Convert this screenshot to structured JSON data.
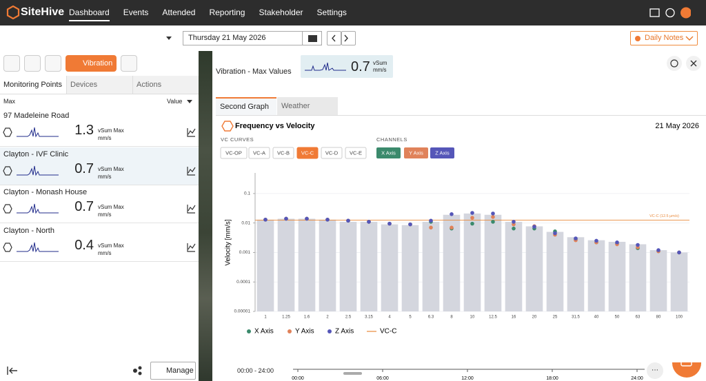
{
  "nav": {
    "brand": "SiteHive",
    "items": [
      "Dashboard",
      "Events",
      "Attended",
      "Reporting",
      "Stakeholder",
      "Settings"
    ]
  },
  "toolbar": {
    "date": "Thursday 21 May 2026",
    "notes": "Daily Notes"
  },
  "sidebar": {
    "mode": "Vibration",
    "tabs": [
      "Monitoring Points",
      "Devices",
      "Actions"
    ],
    "columns": [
      "Max",
      "Value"
    ],
    "points": [
      {
        "name": "97 Madeleine Road",
        "value": 1.3,
        "metric": "vSum Max",
        "unit": "mm/s"
      },
      {
        "name": "Clayton - IVF Clinic",
        "value": 0.7,
        "metric": "vSum Max",
        "unit": "mm/s"
      },
      {
        "name": "Clayton - Monash House",
        "value": 0.7,
        "metric": "vSum Max",
        "unit": "mm/s"
      },
      {
        "name": "Clayton - North",
        "value": 0.4,
        "metric": "vSum Max",
        "unit": "mm/s"
      }
    ],
    "manage": "Manage"
  },
  "panel": {
    "title": "Vibration - Max Values",
    "summary": {
      "value": 0.7,
      "metric": "vSum",
      "unit": "mm/s"
    },
    "tabs": [
      "Second Graph",
      "Weather"
    ],
    "vc_label": "VC CURVES",
    "vc_curves": [
      "VC-OP",
      "VC-A",
      "VC-B",
      "VC-C",
      "VC-D",
      "VC-E"
    ],
    "channels_label": "CHANNELS"
  },
  "timeline": {
    "range": "00:00 - 24:00",
    "ticks": [
      "00:00",
      "06:00",
      "12:00",
      "18:00",
      "24:00"
    ]
  },
  "chart_data": {
    "type": "bar",
    "title": "Frequency vs Velocity",
    "date": "21 May 2026",
    "y_label": "Velocity [mm/s]",
    "yscale": "log",
    "grid": true,
    "categories": [
      "1",
      "1.25",
      "1.6",
      "2",
      "2.5",
      "3.15",
      "4",
      "5",
      "6.3",
      "8",
      "10",
      "12.5",
      "16",
      "20",
      "25",
      "31.5",
      "40",
      "50",
      "63",
      "80",
      "100"
    ],
    "bars": {
      "color": "#d4d6de",
      "values": [
        0.013,
        0.014,
        0.014,
        0.013,
        0.011,
        0.011,
        0.009,
        0.0085,
        0.011,
        0.019,
        0.021,
        0.019,
        0.011,
        0.0077,
        0.005,
        0.0033,
        0.0026,
        0.0023,
        0.0019,
        0.0012,
        0.001
      ]
    },
    "series": [
      {
        "name": "X Axis",
        "color": "#3b8a6c",
        "values": [
          0.013,
          0.014,
          0.014,
          0.013,
          0.012,
          0.011,
          0.0095,
          0.009,
          0.011,
          0.0065,
          0.0095,
          0.011,
          0.0065,
          0.0065,
          0.0052,
          0.0028,
          0.0022,
          0.002,
          0.0014,
          0.0011,
          0.001
        ]
      },
      {
        "name": "Y Axis",
        "color": "#e0825a",
        "values": [
          0.013,
          0.014,
          0.014,
          0.013,
          0.012,
          0.011,
          0.0095,
          0.009,
          0.007,
          0.007,
          0.015,
          0.016,
          0.009,
          0.0078,
          0.004,
          0.0026,
          0.0022,
          0.0019,
          0.0015,
          0.0011,
          0.001
        ]
      },
      {
        "name": "Z Axis",
        "color": "#5556b8",
        "values": [
          0.013,
          0.014,
          0.014,
          0.013,
          0.012,
          0.011,
          0.0095,
          0.009,
          0.012,
          0.02,
          0.022,
          0.021,
          0.011,
          0.0075,
          0.0045,
          0.003,
          0.0025,
          0.0022,
          0.0018,
          0.0012,
          0.001
        ]
      }
    ],
    "reference": {
      "name": "VC-C",
      "label": "VC-C (12.5 μm/s)",
      "value": 0.0125,
      "color": "#e8893a"
    },
    "ylim": [
      1e-05,
      0.5
    ],
    "yticks": [
      0.1,
      0.01,
      0.001,
      0.0001,
      1e-05
    ]
  }
}
